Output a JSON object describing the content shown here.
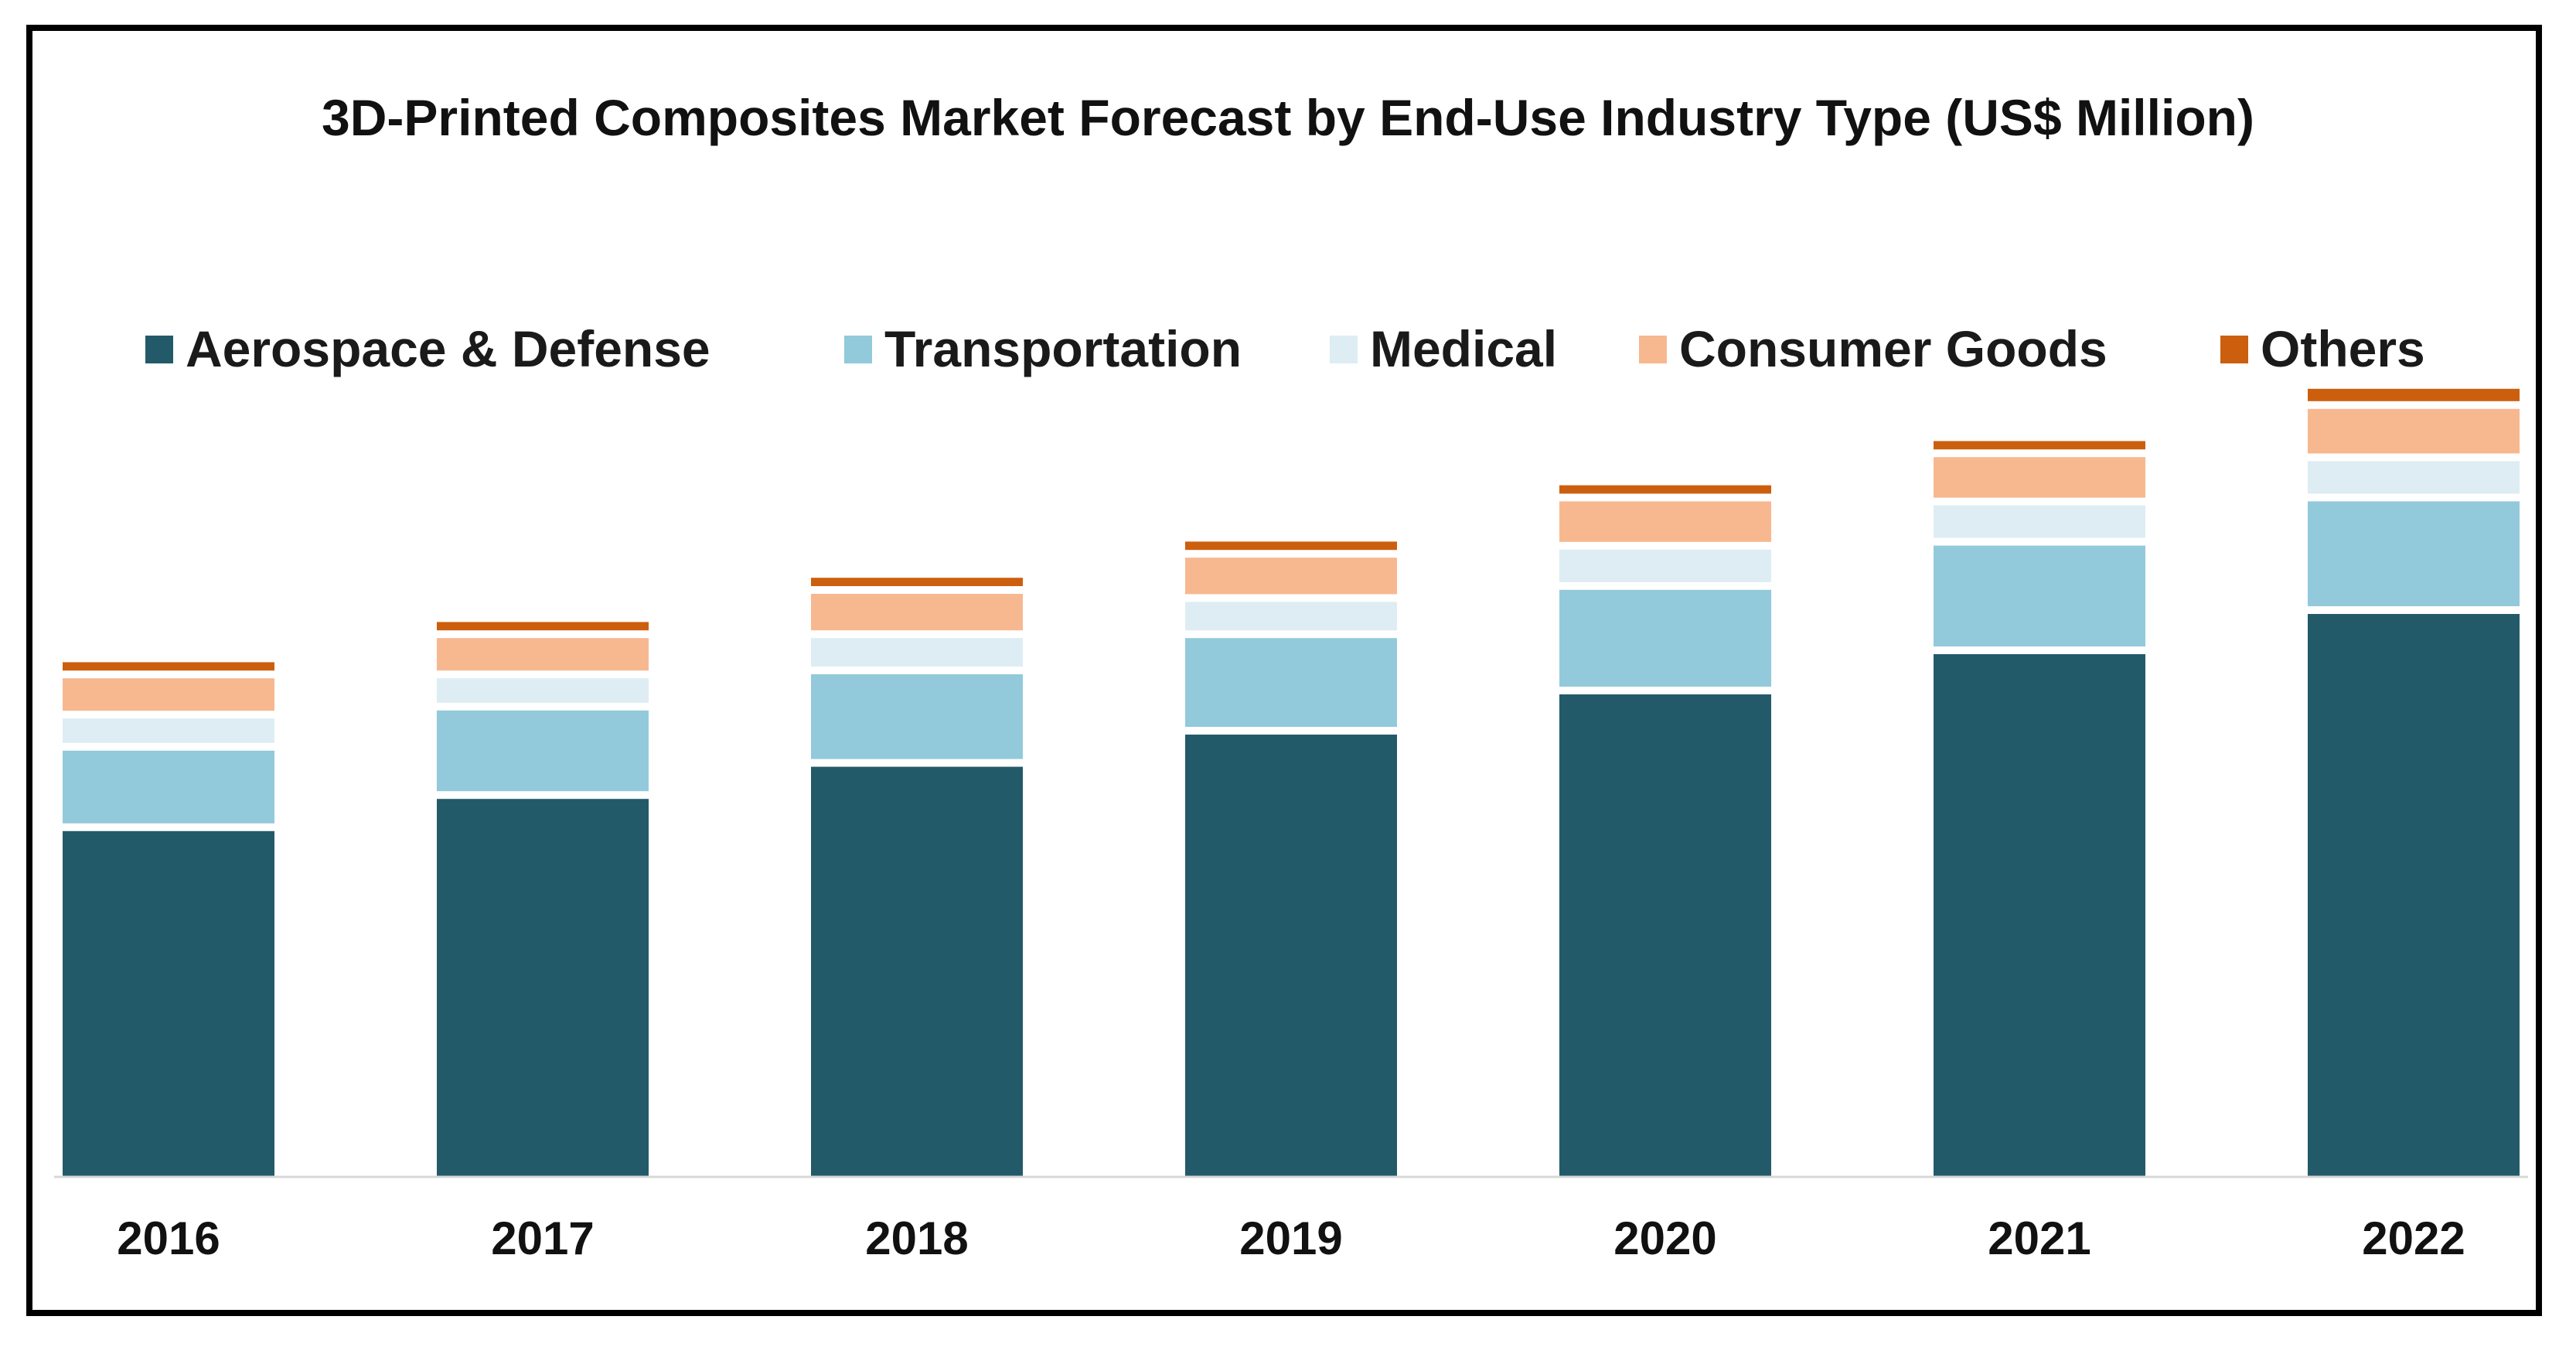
{
  "chart_data": {
    "type": "bar",
    "stacked": true,
    "title": "3D-Printed Composites Market Forecast by End-Use Industry Type (US$ Million)",
    "xlabel": "",
    "ylabel": "",
    "categories": [
      "2016",
      "2017",
      "2018",
      "2019",
      "2020",
      "2021",
      "2022"
    ],
    "series": [
      {
        "name": "Aerospace & Defense",
        "color": "#235a6a",
        "values": [
          43,
          47,
          51,
          55,
          60,
          65,
          70
        ]
      },
      {
        "name": "Transportation",
        "color": "#92c9db",
        "values": [
          10,
          11,
          11.5,
          12,
          13,
          13.5,
          14
        ]
      },
      {
        "name": "Medical",
        "color": "#ddedf3",
        "values": [
          4,
          4,
          4.5,
          4.5,
          5,
          5,
          5
        ]
      },
      {
        "name": "Consumer Goods",
        "color": "#f7b890",
        "values": [
          5,
          5,
          5.5,
          5.5,
          6,
          6,
          6.5
        ]
      },
      {
        "name": "Others",
        "color": "#cc5f0e",
        "values": [
          2,
          2,
          2,
          2,
          2,
          2,
          2.5
        ]
      }
    ],
    "ylim": [
      0,
      100
    ],
    "grid": false,
    "legend_position": "top"
  }
}
